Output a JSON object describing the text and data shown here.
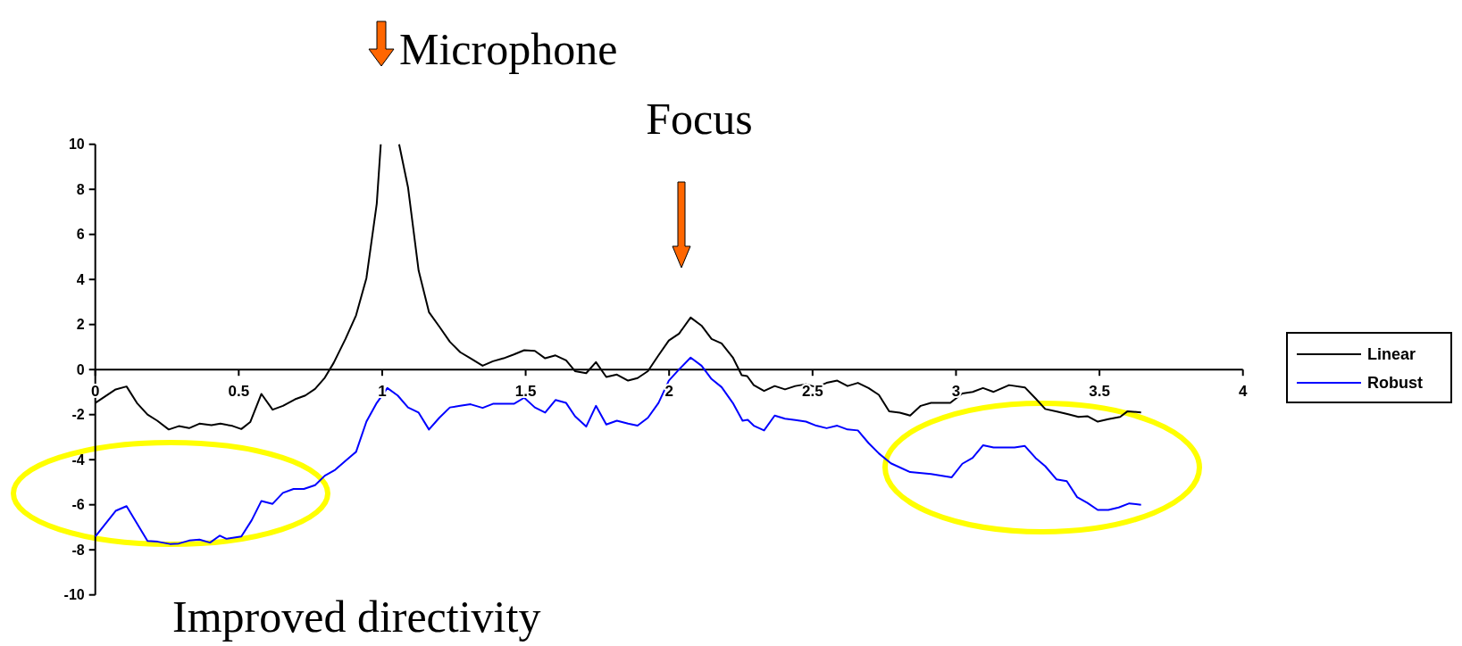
{
  "chart_data": {
    "type": "line",
    "annotations": [
      "Microphone",
      "Focus",
      "Improved directivity"
    ],
    "xlim": [
      0,
      4
    ],
    "ylim": [
      -10,
      10
    ],
    "xticks": [
      0,
      0.5,
      1,
      1.5,
      2,
      2.5,
      3,
      3.5,
      4
    ],
    "yticks": [
      -10,
      -8,
      -6,
      -4,
      -2,
      0,
      2,
      4,
      6,
      8,
      10
    ],
    "grid": false,
    "legend": "right",
    "marker": "none",
    "line_style": "solid",
    "series": [
      {
        "name": "Linear",
        "color": "#000000",
        "x": [
          0,
          0.071,
          0.109,
          0.145,
          0.182,
          0.216,
          0.256,
          0.291,
          0.327,
          0.363,
          0.405,
          0.436,
          0.478,
          0.509,
          0.54,
          0.579,
          0.618,
          0.654,
          0.696,
          0.732,
          0.766,
          0.8,
          0.831,
          0.872,
          0.909,
          0.945,
          0.981,
          0.995,
          1.03,
          1.059,
          1.09,
          1.127,
          1.163,
          1.199,
          1.236,
          1.272,
          1.308,
          1.35,
          1.386,
          1.423,
          1.459,
          1.495,
          1.532,
          1.568,
          1.604,
          1.641,
          1.672,
          1.711,
          1.745,
          1.781,
          1.818,
          1.857,
          1.89,
          1.926,
          1.963,
          1.999,
          2.035,
          2.075,
          2.113,
          2.148,
          2.183,
          2.222,
          2.253,
          2.272,
          2.295,
          2.331,
          2.368,
          2.404,
          2.44,
          2.477,
          2.513,
          2.549,
          2.586,
          2.622,
          2.658,
          2.695,
          2.731,
          2.767,
          2.804,
          2.84,
          2.877,
          2.913,
          2.98,
          3.022,
          3.058,
          3.094,
          3.131,
          3.185,
          3.24,
          3.277,
          3.311,
          3.355,
          3.391,
          3.427,
          3.458,
          3.494,
          3.531,
          3.572,
          3.598,
          3.645
        ],
        "values": [
          -1.48,
          -0.88,
          -0.75,
          -1.48,
          -2.0,
          -2.27,
          -2.66,
          -2.51,
          -2.6,
          -2.4,
          -2.47,
          -2.4,
          -2.5,
          -2.64,
          -2.33,
          -1.08,
          -1.78,
          -1.61,
          -1.32,
          -1.15,
          -0.86,
          -0.36,
          0.3,
          1.36,
          2.41,
          4.06,
          7.36,
          10,
          null,
          10,
          8.09,
          4.39,
          2.55,
          1.91,
          1.23,
          0.77,
          0.5,
          0.17,
          0.37,
          0.5,
          0.67,
          0.86,
          0.83,
          0.5,
          0.63,
          0.41,
          -0.07,
          -0.16,
          0.33,
          -0.33,
          -0.22,
          -0.49,
          -0.38,
          -0.07,
          0.63,
          1.29,
          1.6,
          2.31,
          1.95,
          1.36,
          1.16,
          0.54,
          -0.25,
          -0.29,
          -0.69,
          -0.95,
          -0.73,
          -0.88,
          -0.73,
          -0.65,
          -0.78,
          -0.59,
          -0.49,
          -0.73,
          -0.59,
          -0.82,
          -1.12,
          -1.85,
          -1.91,
          -2.04,
          -1.61,
          -1.48,
          -1.48,
          -1.06,
          -0.99,
          -0.82,
          -0.99,
          -0.69,
          -0.79,
          -1.28,
          -1.75,
          -1.87,
          -1.98,
          -2.1,
          -2.07,
          -2.31,
          -2.2,
          -2.1,
          -1.85,
          -1.9
        ]
      },
      {
        "name": "Robust",
        "color": "#0000ff",
        "x": [
          0,
          0.071,
          0.109,
          0.145,
          0.182,
          0.218,
          0.26,
          0.291,
          0.327,
          0.363,
          0.4,
          0.434,
          0.457,
          0.509,
          0.545,
          0.579,
          0.618,
          0.654,
          0.691,
          0.727,
          0.766,
          0.8,
          0.836,
          0.872,
          0.909,
          0.945,
          0.981,
          1.018,
          1.054,
          1.09,
          1.127,
          1.163,
          1.199,
          1.236,
          1.272,
          1.308,
          1.35,
          1.386,
          1.423,
          1.459,
          1.495,
          1.532,
          1.568,
          1.604,
          1.641,
          1.672,
          1.711,
          1.745,
          1.781,
          1.818,
          1.857,
          1.89,
          1.926,
          1.963,
          1.999,
          2.035,
          2.075,
          2.113,
          2.148,
          2.183,
          2.222,
          2.256,
          2.274,
          2.295,
          2.331,
          2.368,
          2.404,
          2.44,
          2.477,
          2.513,
          2.549,
          2.586,
          2.622,
          2.658,
          2.695,
          2.731,
          2.773,
          2.84,
          2.913,
          2.985,
          3.022,
          3.058,
          3.094,
          3.131,
          3.204,
          3.24,
          3.277,
          3.311,
          3.35,
          3.386,
          3.422,
          3.458,
          3.494,
          3.531,
          3.567,
          3.604,
          3.645
        ],
        "values": [
          -7.41,
          -6.27,
          -6.06,
          -6.82,
          -7.61,
          -7.64,
          -7.74,
          -7.72,
          -7.59,
          -7.55,
          -7.68,
          -7.37,
          -7.51,
          -7.41,
          -6.69,
          -5.83,
          -5.96,
          -5.47,
          -5.3,
          -5.3,
          -5.13,
          -4.71,
          -4.45,
          -4.05,
          -3.65,
          -2.31,
          -1.48,
          -0.82,
          -1.15,
          -1.68,
          -1.91,
          -2.66,
          -2.14,
          -1.68,
          -1.61,
          -1.54,
          -1.7,
          -1.52,
          -1.52,
          -1.52,
          -1.25,
          -1.68,
          -1.91,
          -1.35,
          -1.48,
          -2.07,
          -2.53,
          -1.61,
          -2.44,
          -2.27,
          -2.4,
          -2.49,
          -2.14,
          -1.48,
          -0.49,
          0.01,
          0.53,
          0.17,
          -0.42,
          -0.78,
          -1.48,
          -2.27,
          -2.23,
          -2.49,
          -2.7,
          -2.04,
          -2.18,
          -2.24,
          -2.31,
          -2.49,
          -2.6,
          -2.49,
          -2.66,
          -2.7,
          -3.26,
          -3.72,
          -4.16,
          -4.55,
          -4.64,
          -4.78,
          -4.18,
          -3.92,
          -3.36,
          -3.46,
          -3.46,
          -3.39,
          -3.92,
          -4.29,
          -4.87,
          -4.95,
          -5.66,
          -5.92,
          -6.23,
          -6.23,
          -6.12,
          -5.94,
          -6.0
        ]
      }
    ]
  }
}
